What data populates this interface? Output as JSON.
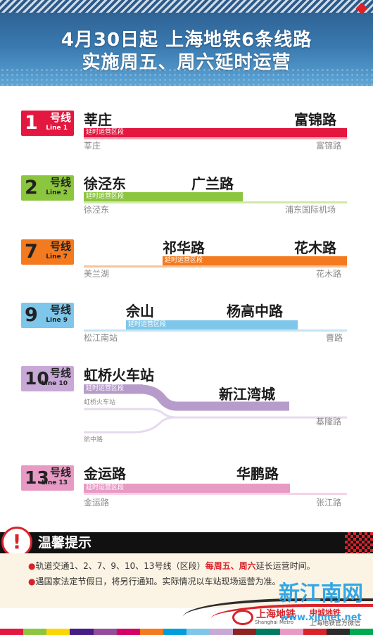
{
  "header": {
    "title_line1": "4月30日起  上海地铁6条线路",
    "title_line2": "实施周五、周六延时运营"
  },
  "segment_label": "延时运营区段",
  "lines": [
    {
      "num": "1",
      "name": "号线",
      "en": "Line 1",
      "color": "#e3173f",
      "top_left": "莘庄",
      "top_right": "富锦路",
      "bottom_left": "莘庄",
      "bottom_right": "富锦路"
    },
    {
      "num": "2",
      "name": "号线",
      "en": "Line 2",
      "color": "#8cc63f",
      "top_left": "徐泾东",
      "top_right": "广兰路",
      "bottom_left": "徐泾东",
      "bottom_right": "浦东国际机场"
    },
    {
      "num": "7",
      "name": "号线",
      "en": "Line 7",
      "color": "#f47a20",
      "top_left": "祁华路",
      "top_right": "花木路",
      "bottom_left": "美兰湖",
      "bottom_right": "花木路"
    },
    {
      "num": "9",
      "name": "号线",
      "en": "Line 9",
      "color": "#7ec6ea",
      "top_left": "佘山",
      "top_right": "杨高中路",
      "bottom_left": "松江南站",
      "bottom_right": "曹路"
    },
    {
      "num": "10",
      "name": "号线",
      "en": "Line 10",
      "color": "#c7a8d6",
      "top_left": "虹桥火车站",
      "top_right": "新江湾城",
      "branch_a": "虹桥火车站",
      "branch_b": "航中路",
      "bottom_right": "基隆路"
    },
    {
      "num": "13",
      "name": "号线",
      "en": "Line 13",
      "color": "#e79ac4",
      "top_left": "金运路",
      "top_right": "华鹏路",
      "bottom_left": "金运路",
      "bottom_right": "张江路"
    }
  ],
  "tips": {
    "title": "温馨提示",
    "notice1_pre": "轨道交通1、2、7、9、10、13号线（区段）",
    "notice1_hl": "每周五、周六",
    "notice1_post": "延长运营时间。",
    "notice2": "遇国家法定节假日，将另行通知。实际情况以车站现场运营为准。"
  },
  "footer": {
    "logo": "上海地铁",
    "logo_en": "Shanghai Metro",
    "brand2": "申城地铁",
    "brand2_sub": "上海地铁官方微信",
    "watermark": "新江南网",
    "watermark_url": "www.xjnnet.net"
  }
}
